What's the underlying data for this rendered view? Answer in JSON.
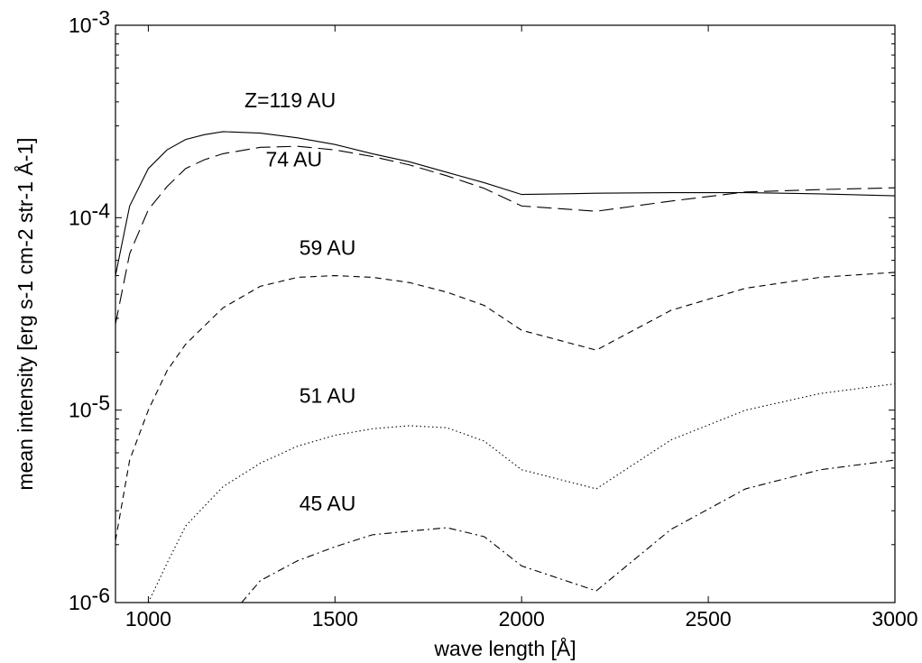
{
  "chart_data": {
    "type": "line",
    "title": "",
    "xlabel": "wave length [Å]",
    "ylabel": "mean intensity [erg s-1 cm-2 str-1 Å-1]",
    "x_scale": "linear",
    "y_scale": "log",
    "xlim": [
      912,
      3000
    ],
    "ylim": [
      1e-06,
      0.001
    ],
    "grid": false,
    "legend": "none",
    "x_ticks": [
      1000,
      1500,
      2000,
      2500,
      3000
    ],
    "x_tick_labels": [
      "1000",
      "1500",
      "2000",
      "2500",
      "3000"
    ],
    "y_ticks": [
      1e-06,
      1e-05,
      0.0001,
      0.001
    ],
    "y_tick_labels": [
      {
        "base": "10",
        "exp": "-6"
      },
      {
        "base": "10",
        "exp": "-5"
      },
      {
        "base": "10",
        "exp": "-4"
      },
      {
        "base": "10",
        "exp": "-3"
      }
    ],
    "series": [
      {
        "name": "Z=119 AU",
        "style": "solid",
        "x": [
          912,
          950,
          1000,
          1050,
          1100,
          1150,
          1200,
          1300,
          1400,
          1500,
          1600,
          1700,
          1800,
          1900,
          2000,
          2200,
          2400,
          2600,
          2800,
          3000
        ],
        "y": [
          5e-05,
          0.000115,
          0.00018,
          0.000225,
          0.000255,
          0.00027,
          0.00028,
          0.000275,
          0.00026,
          0.00024,
          0.000215,
          0.000195,
          0.000172,
          0.000152,
          0.000132,
          0.000134,
          0.000135,
          0.000135,
          0.000133,
          0.00013
        ]
      },
      {
        "name": "74 AU",
        "style": "long-dash",
        "x": [
          912,
          950,
          1000,
          1050,
          1100,
          1150,
          1200,
          1300,
          1400,
          1500,
          1600,
          1700,
          1800,
          1900,
          2000,
          2200,
          2400,
          2600,
          2800,
          3000
        ],
        "y": [
          2.8e-05,
          6.5e-05,
          0.00011,
          0.000145,
          0.00018,
          0.0002,
          0.000215,
          0.000232,
          0.000235,
          0.000225,
          0.000208,
          0.000188,
          0.000165,
          0.000142,
          0.000115,
          0.000108,
          0.000122,
          0.000136,
          0.00014,
          0.000143
        ]
      },
      {
        "name": "59 AU",
        "style": "dash",
        "x": [
          912,
          950,
          1000,
          1050,
          1100,
          1200,
          1300,
          1400,
          1500,
          1600,
          1700,
          1800,
          1900,
          2000,
          2200,
          2400,
          2600,
          2800,
          3000
        ],
        "y": [
          2.1e-06,
          5.5e-06,
          1e-05,
          1.6e-05,
          2.2e-05,
          3.4e-05,
          4.4e-05,
          4.9e-05,
          5e-05,
          4.9e-05,
          4.6e-05,
          4.1e-05,
          3.5e-05,
          2.6e-05,
          2.05e-05,
          3.3e-05,
          4.3e-05,
          4.9e-05,
          5.2e-05
        ]
      },
      {
        "name": "51 AU",
        "style": "dotted",
        "x": [
          1000,
          1050,
          1100,
          1200,
          1300,
          1400,
          1500,
          1600,
          1700,
          1800,
          1900,
          2000,
          2200,
          2400,
          2600,
          2800,
          3000
        ],
        "y": [
          1e-06,
          1.6e-06,
          2.5e-06,
          4e-06,
          5.3e-06,
          6.5e-06,
          7.4e-06,
          8e-06,
          8.3e-06,
          8.1e-06,
          6.9e-06,
          4.9e-06,
          3.9e-06,
          7e-06,
          1e-05,
          1.22e-05,
          1.37e-05
        ]
      },
      {
        "name": "45 AU",
        "style": "dash-dot",
        "x": [
          1250,
          1300,
          1400,
          1500,
          1600,
          1700,
          1800,
          1900,
          2000,
          2200,
          2400,
          2600,
          2800,
          3000
        ],
        "y": [
          1e-06,
          1.3e-06,
          1.65e-06,
          1.95e-06,
          2.25e-06,
          2.35e-06,
          2.45e-06,
          2.2e-06,
          1.55e-06,
          1.15e-06,
          2.4e-06,
          3.9e-06,
          4.9e-06,
          5.5e-06
        ]
      }
    ],
    "annotations": [
      {
        "text": "Z=119 AU",
        "series": "Z=119 AU",
        "x": 1380,
        "y": 0.000375
      },
      {
        "text": "74 AU",
        "series": "74 AU",
        "x": 1390,
        "y": 0.000185
      },
      {
        "text": "59 AU",
        "series": "59 AU",
        "x": 1480,
        "y": 6.4e-05
      },
      {
        "text": "51 AU",
        "series": "51 AU",
        "x": 1480,
        "y": 1.09e-05
      },
      {
        "text": "45 AU",
        "series": "45 AU",
        "x": 1480,
        "y": 3e-06
      }
    ]
  }
}
